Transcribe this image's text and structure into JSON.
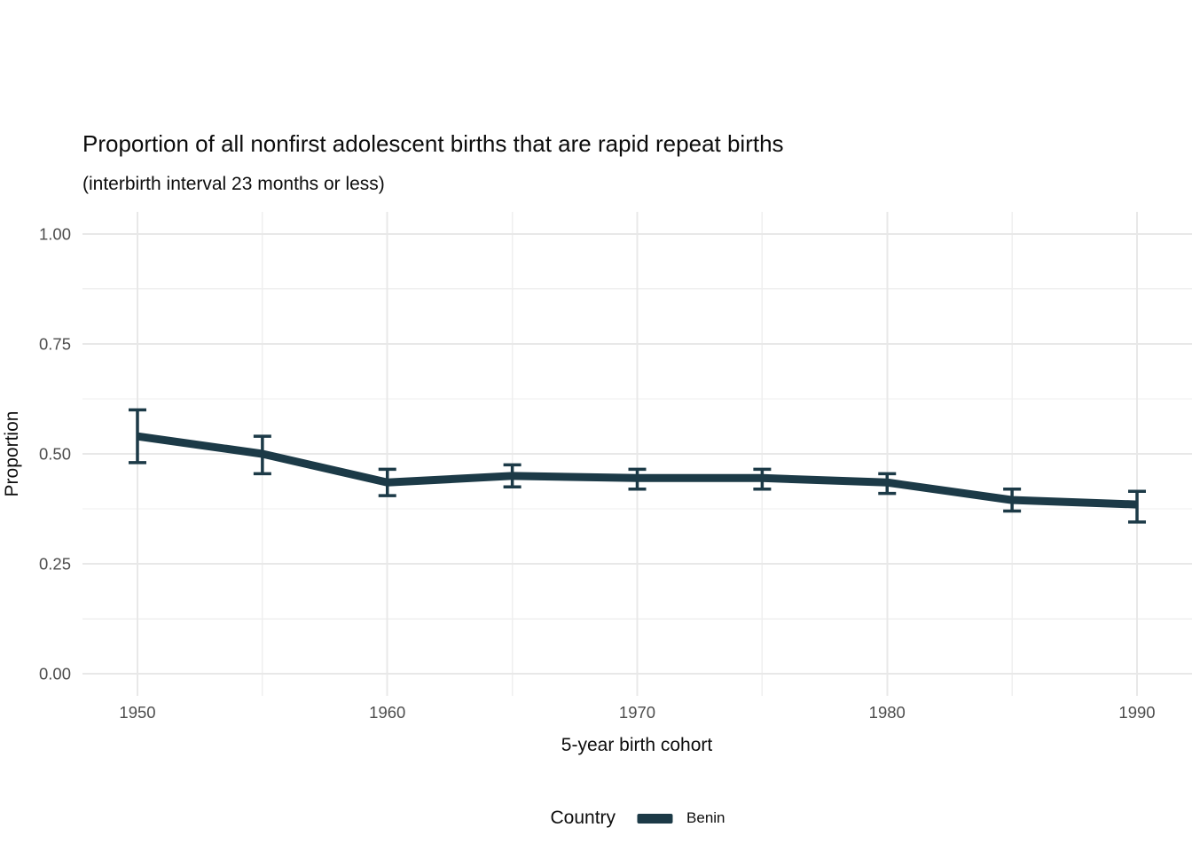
{
  "header": {
    "title": "Proportion of all nonfirst adolescent births that are rapid repeat births",
    "subtitle": "(interbirth interval 23 months or less)"
  },
  "axes": {
    "x_title": "5-year birth cohort",
    "y_title": "Proportion"
  },
  "legend": {
    "title": "Country",
    "items": [
      {
        "label": "Benin",
        "color": "#1c3a47"
      }
    ]
  },
  "chart_data": {
    "type": "line",
    "title": "Proportion of all nonfirst adolescent births that are rapid repeat births",
    "subtitle": "(interbirth interval 23 months or less)",
    "xlabel": "5-year birth cohort",
    "ylabel": "Proportion",
    "x": [
      1950,
      1955,
      1960,
      1965,
      1970,
      1975,
      1980,
      1985,
      1990
    ],
    "series": [
      {
        "name": "Benin",
        "color": "#1c3a47",
        "values": [
          0.54,
          0.5,
          0.435,
          0.45,
          0.445,
          0.445,
          0.435,
          0.395,
          0.385
        ],
        "ci_low": [
          0.48,
          0.455,
          0.405,
          0.425,
          0.42,
          0.42,
          0.41,
          0.37,
          0.345
        ],
        "ci_high": [
          0.6,
          0.54,
          0.465,
          0.475,
          0.465,
          0.465,
          0.455,
          0.42,
          0.415
        ]
      }
    ],
    "error_bars": true,
    "xticks": [
      1950,
      1960,
      1970,
      1980,
      1990
    ],
    "xticks_minor": [
      1955,
      1965,
      1975,
      1985
    ],
    "yticks": [
      0,
      0.25,
      0.5,
      0.75,
      1.0
    ],
    "ytick_labels": [
      "0.00",
      "0.25",
      "0.50",
      "0.75",
      "1.00"
    ],
    "yticks_minor": [
      0.125,
      0.375,
      0.625,
      0.875
    ],
    "xlim": [
      1947.8,
      1992.2
    ],
    "ylim": [
      -0.05,
      1.05
    ],
    "grid": "major-and-minor",
    "legend_position": "bottom",
    "background": "#ffffff",
    "grid_major_color": "#e8e8e8",
    "grid_minor_color": "#efefef",
    "tick_label_color": "#4d4d4d"
  }
}
